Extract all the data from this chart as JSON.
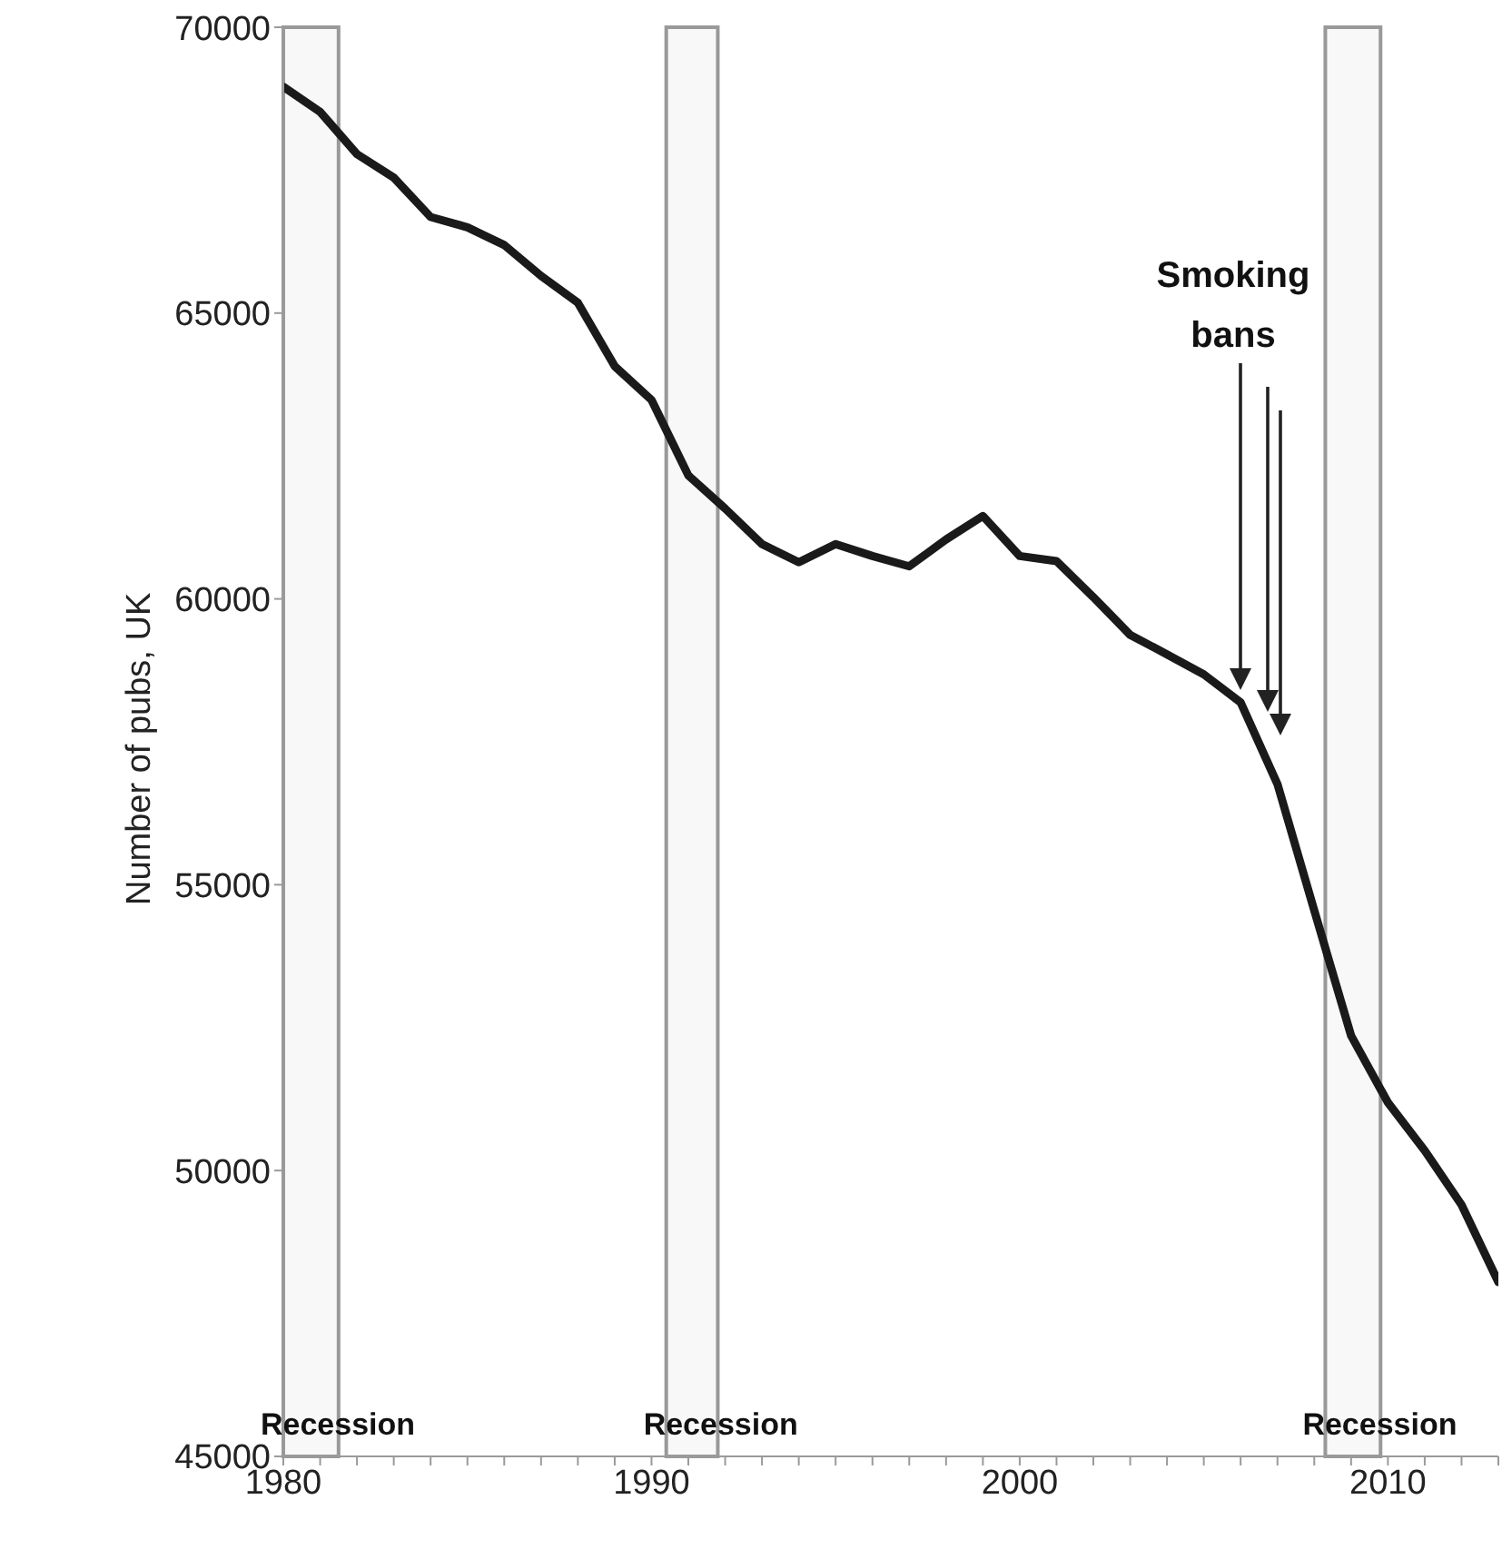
{
  "chart_data": {
    "type": "line",
    "ylabel": "Number of pubs, UK",
    "x": [
      1980,
      1981,
      1982,
      1983,
      1984,
      1985,
      1986,
      1987,
      1988,
      1989,
      1990,
      1991,
      1992,
      1993,
      1994,
      1995,
      1996,
      1997,
      1998,
      1999,
      2000,
      2001,
      2002,
      2003,
      2004,
      2005,
      2006,
      2007,
      2008,
      2009,
      2010,
      2011,
      2012,
      2013
    ],
    "series": [
      {
        "color": "#1a1a1a",
        "values": [
          68960,
          68520,
          67780,
          67370,
          66680,
          66500,
          66190,
          65650,
          65180,
          64070,
          63480,
          62160,
          61580,
          60960,
          60640,
          60960,
          60750,
          60570,
          61040,
          61450,
          60750,
          60660,
          60030,
          59370,
          59030,
          58680,
          58190,
          56760,
          54550,
          52360,
          51190,
          50350,
          49400,
          48050
        ]
      }
    ],
    "xlim": [
      1980,
      2013
    ],
    "xticks": [
      {
        "value": 1980,
        "label": "1980"
      },
      {
        "value": 1981,
        "label": null
      },
      {
        "value": 1982,
        "label": null
      },
      {
        "value": 1983,
        "label": null
      },
      {
        "value": 1984,
        "label": null
      },
      {
        "value": 1985,
        "label": null
      },
      {
        "value": 1986,
        "label": null
      },
      {
        "value": 1987,
        "label": null
      },
      {
        "value": 1988,
        "label": null
      },
      {
        "value": 1989,
        "label": null
      },
      {
        "value": 1990,
        "label": "1990"
      },
      {
        "value": 1991,
        "label": null
      },
      {
        "value": 1992,
        "label": null
      },
      {
        "value": 1993,
        "label": null
      },
      {
        "value": 1994,
        "label": null
      },
      {
        "value": 1995,
        "label": null
      },
      {
        "value": 1996,
        "label": null
      },
      {
        "value": 1997,
        "label": null
      },
      {
        "value": 1998,
        "label": null
      },
      {
        "value": 1999,
        "label": null
      },
      {
        "value": 2000,
        "label": "2000"
      },
      {
        "value": 2001,
        "label": null
      },
      {
        "value": 2002,
        "label": null
      },
      {
        "value": 2003,
        "label": null
      },
      {
        "value": 2004,
        "label": null
      },
      {
        "value": 2005,
        "label": null
      },
      {
        "value": 2006,
        "label": null
      },
      {
        "value": 2007,
        "label": null
      },
      {
        "value": 2008,
        "label": null
      },
      {
        "value": 2009,
        "label": null
      },
      {
        "value": 2010,
        "label": "2010"
      },
      {
        "value": 2011,
        "label": null
      },
      {
        "value": 2012,
        "label": null
      },
      {
        "value": 2013,
        "label": null
      }
    ],
    "ylim": [
      45000,
      70000
    ],
    "yticks": [
      45000,
      50000,
      55000,
      60000,
      65000,
      70000
    ],
    "grid": false,
    "legend": false,
    "marker": "none",
    "line_style": "solid",
    "bands": [
      {
        "axis": "x",
        "from": 1980,
        "to": 1981.5,
        "label": "Recession",
        "color": "#f2f2f2"
      },
      {
        "axis": "x",
        "from": 1990.4,
        "to": 1991.8,
        "label": "Recession",
        "color": "#f2f2f2"
      },
      {
        "axis": "x",
        "from": 2008.3,
        "to": 2009.8,
        "label": "Recession",
        "color": "#f2f2f2"
      }
    ],
    "annotations": [
      "Smoking bans"
    ]
  }
}
